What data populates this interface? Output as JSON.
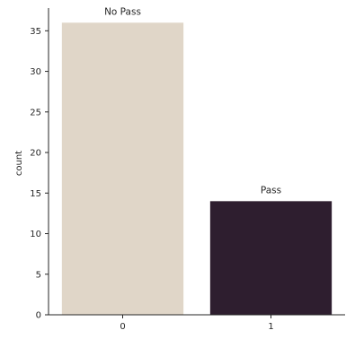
{
  "chart_data": {
    "type": "bar",
    "categories": [
      "0",
      "1"
    ],
    "values": [
      36,
      14
    ],
    "data_labels": [
      "No Pass",
      "Pass"
    ],
    "colors": [
      "#e0d6c8",
      "#2e1e2f"
    ],
    "title": "",
    "xlabel": "",
    "ylabel": "count",
    "ylim": [
      0,
      37.8
    ],
    "yticks": [
      0,
      5,
      10,
      15,
      20,
      25,
      30,
      35
    ],
    "grid": false,
    "legend": "none",
    "spines": "left-bottom"
  }
}
